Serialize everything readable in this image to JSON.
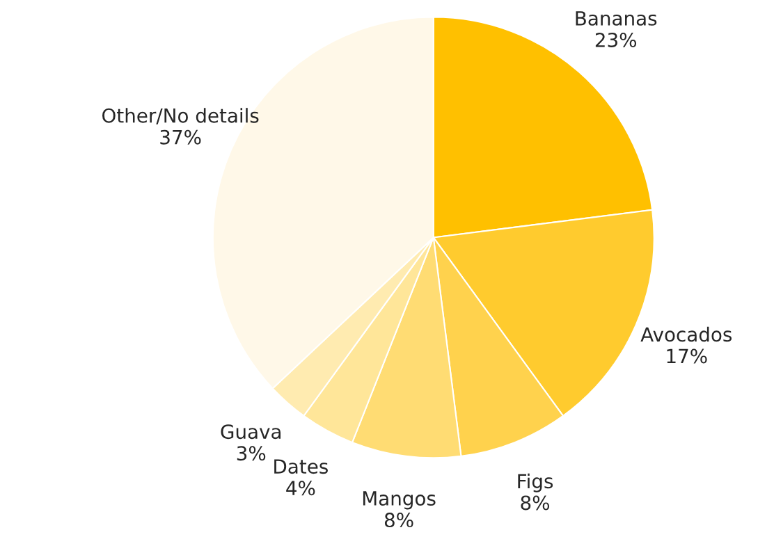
{
  "chart_data": {
    "type": "pie",
    "categories": [
      "Bananas",
      "Avocados",
      "Figs",
      "Mangos",
      "Dates",
      "Guava",
      "Other/No details"
    ],
    "values": [
      23,
      17,
      8,
      8,
      4,
      3,
      37
    ],
    "value_labels": [
      "23%",
      "17%",
      "8%",
      "8%",
      "4%",
      "3%",
      "37%"
    ],
    "colors": [
      "#ffc000",
      "#ffcb2e",
      "#ffd24d",
      "#ffdc73",
      "#ffe699",
      "#ffebb0",
      "#fff8e8"
    ]
  }
}
